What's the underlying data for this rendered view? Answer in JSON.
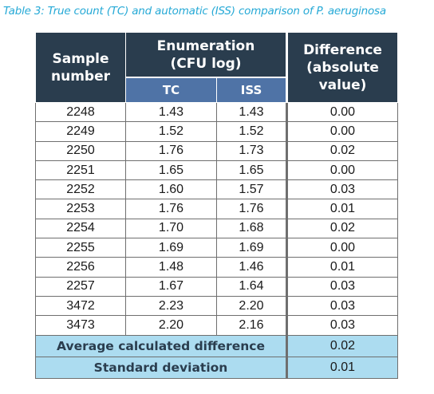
{
  "caption": "Table 3: True count (TC) and automatic (ISS) comparison of P. aeruginosa",
  "header": {
    "sample_line1": "Sample",
    "sample_line2": "number",
    "enum_line1": "Enumeration",
    "enum_line2": "(CFU log)",
    "tc": "TC",
    "iss": "ISS",
    "diff_line1": "Difference",
    "diff_line2": "(absolute",
    "diff_line3": "value)"
  },
  "rows": [
    {
      "sample": "2248",
      "tc": "1.43",
      "iss": "1.43",
      "diff": "0.00"
    },
    {
      "sample": "2249",
      "tc": "1.52",
      "iss": "1.52",
      "diff": "0.00"
    },
    {
      "sample": "2250",
      "tc": "1.76",
      "iss": "1.73",
      "diff": "0.02"
    },
    {
      "sample": "2251",
      "tc": "1.65",
      "iss": "1.65",
      "diff": "0.00"
    },
    {
      "sample": "2252",
      "tc": "1.60",
      "iss": "1.57",
      "diff": "0.03"
    },
    {
      "sample": "2253",
      "tc": "1.76",
      "iss": "1.76",
      "diff": "0.01"
    },
    {
      "sample": "2254",
      "tc": "1.70",
      "iss": "1.68",
      "diff": "0.02"
    },
    {
      "sample": "2255",
      "tc": "1.69",
      "iss": "1.69",
      "diff": "0.00"
    },
    {
      "sample": "2256",
      "tc": "1.48",
      "iss": "1.46",
      "diff": "0.01"
    },
    {
      "sample": "2257",
      "tc": "1.67",
      "iss": "1.64",
      "diff": "0.03"
    },
    {
      "sample": "3472",
      "tc": "2.23",
      "iss": "2.20",
      "diff": "0.03"
    },
    {
      "sample": "3473",
      "tc": "2.20",
      "iss": "2.16",
      "diff": "0.03"
    }
  ],
  "summary": [
    {
      "label": "Average calculated difference",
      "value": "0.02"
    },
    {
      "label": "Standard deviation",
      "value": "0.01"
    }
  ],
  "colors": {
    "caption": "#25a9d6",
    "header_dark": "#2a3d4e",
    "header_sub": "#4f73a6",
    "summary_bg": "#acdcf0"
  }
}
